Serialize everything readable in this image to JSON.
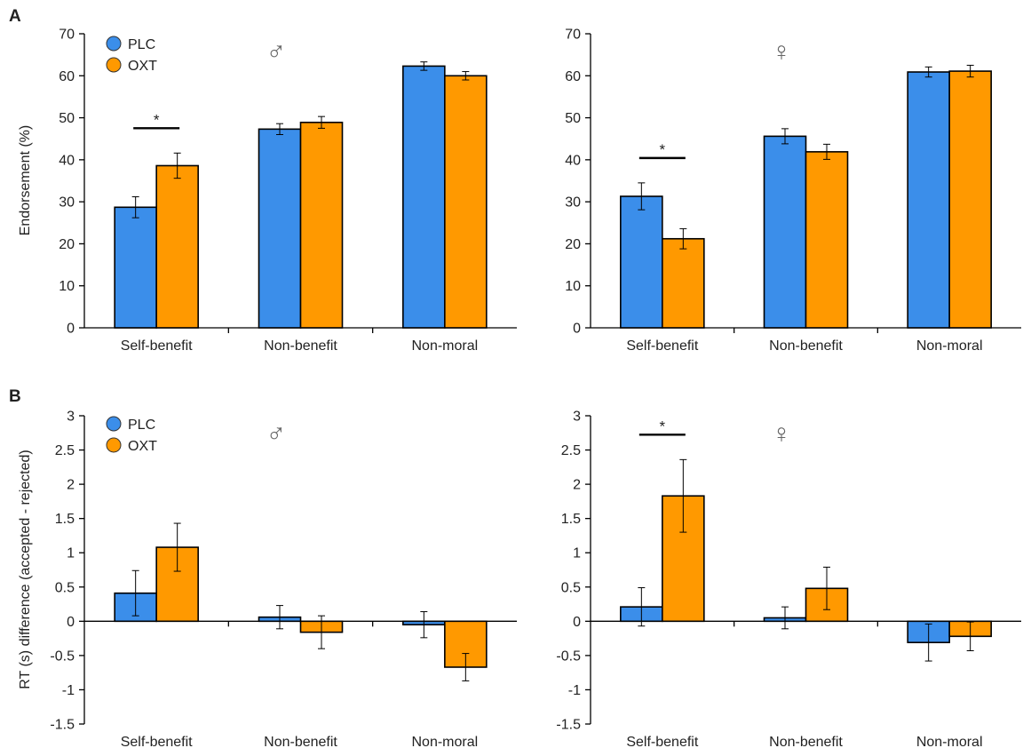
{
  "colors": {
    "PLC": "#3B8EEA",
    "OXT": "#FF9900",
    "axis": "#000000",
    "sym": "#666666"
  },
  "panels": {
    "A": {
      "letter": "A",
      "ylabel": "Endorsement (%)",
      "ylim": [
        0,
        70
      ],
      "ticks": [
        0,
        10,
        20,
        30,
        40,
        50,
        60,
        70
      ]
    },
    "B": {
      "letter": "B",
      "ylabel": "RT (s)  difference (accepted - rejected)",
      "ylim": [
        -1.5,
        3
      ],
      "ticks": [
        -1.5,
        -1,
        -0.5,
        0,
        0.5,
        1,
        1.5,
        2,
        2.5,
        3
      ]
    }
  },
  "legend": {
    "plc": "PLC",
    "oxt": "OXT"
  },
  "chart_data": [
    {
      "type": "bar",
      "panel": "A",
      "group": "male",
      "symbol": "♂",
      "categories": [
        "Self-benefit",
        "Non-benefit",
        "Non-moral"
      ],
      "ylabel": "Endorsement (%)",
      "ylim": [
        0,
        70
      ],
      "series": [
        {
          "name": "PLC",
          "values": [
            28.7,
            47.3,
            62.3
          ],
          "errors": [
            2.5,
            1.3,
            1.0
          ]
        },
        {
          "name": "OXT",
          "values": [
            38.6,
            48.9,
            60.0
          ],
          "errors": [
            3.0,
            1.4,
            1.0
          ]
        }
      ],
      "significance": [
        {
          "category": 0,
          "label": "*"
        }
      ]
    },
    {
      "type": "bar",
      "panel": "A",
      "group": "female",
      "symbol": "♀",
      "categories": [
        "Self-benefit",
        "Non-benefit",
        "Non-moral"
      ],
      "ylim": [
        0,
        70
      ],
      "series": [
        {
          "name": "PLC",
          "values": [
            31.3,
            45.6,
            60.9
          ],
          "errors": [
            3.2,
            1.8,
            1.2
          ]
        },
        {
          "name": "OXT",
          "values": [
            21.2,
            41.9,
            61.1
          ],
          "errors": [
            2.4,
            1.8,
            1.4
          ]
        }
      ],
      "significance": [
        {
          "category": 0,
          "label": "*"
        }
      ]
    },
    {
      "type": "bar",
      "panel": "B",
      "group": "male",
      "symbol": "♂",
      "categories": [
        "Self-benefit",
        "Non-benefit",
        "Non-moral"
      ],
      "ylabel": "RT (s)  difference (accepted - rejected)",
      "ylim": [
        -1.5,
        3
      ],
      "series": [
        {
          "name": "PLC",
          "values": [
            0.41,
            0.06,
            -0.05
          ],
          "errors": [
            0.33,
            0.17,
            0.19
          ]
        },
        {
          "name": "OXT",
          "values": [
            1.08,
            -0.16,
            -0.67
          ],
          "errors": [
            0.35,
            0.24,
            0.2
          ]
        }
      ],
      "significance": []
    },
    {
      "type": "bar",
      "panel": "B",
      "group": "female",
      "symbol": "♀",
      "categories": [
        "Self-benefit",
        "Non-benefit",
        "Non-moral"
      ],
      "ylim": [
        -1.5,
        3
      ],
      "series": [
        {
          "name": "PLC",
          "values": [
            0.21,
            0.05,
            -0.31
          ],
          "errors": [
            0.28,
            0.16,
            0.27
          ]
        },
        {
          "name": "OXT",
          "values": [
            1.83,
            0.48,
            -0.22
          ],
          "errors": [
            0.53,
            0.31,
            0.21
          ]
        }
      ],
      "significance": [
        {
          "category": 0,
          "label": "*"
        }
      ]
    }
  ]
}
